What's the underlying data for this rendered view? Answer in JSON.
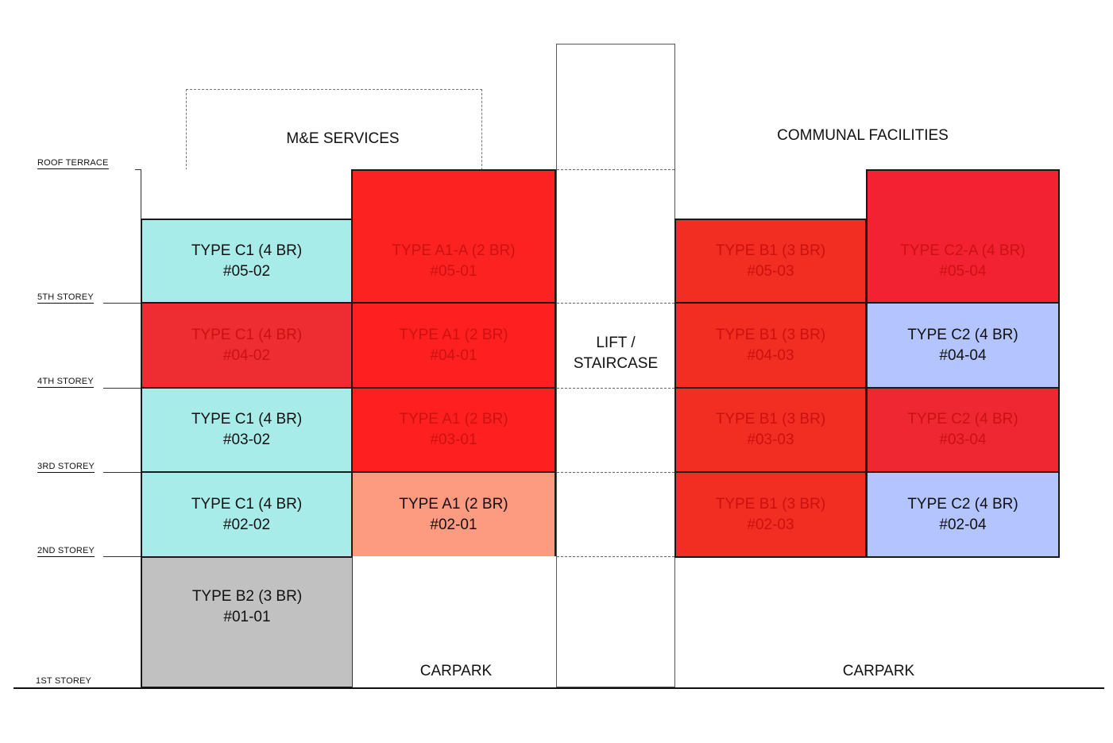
{
  "levels": {
    "roof": "ROOF TERRACE",
    "l5": "5TH STOREY",
    "l4": "4TH STOREY",
    "l3": "3RD STOREY",
    "l2": "2ND STOREY",
    "l1": "1ST STOREY"
  },
  "zones": {
    "me_services": "M&E SERVICES",
    "communal": "COMMUNAL FACILITIES",
    "lift": [
      "LIFT /",
      "STAIRCASE"
    ],
    "carpark_left": "CARPARK",
    "carpark_right": "CARPARK"
  },
  "colors": {
    "sold_red": "#fe2020",
    "available_c1": "#a8ecea",
    "available_c2": "#b3c4fe",
    "available_a1": "#fd9b80",
    "available_b2": "#c1c1c1"
  },
  "units": [
    {
      "id": "u0502",
      "type": "TYPE C1 (4 BR)",
      "no": "#05-02",
      "status": "available",
      "color": "#a8ecea"
    },
    {
      "id": "u0501",
      "type": "TYPE A1-A (2 BR)",
      "no": "#05-01",
      "status": "sold",
      "color": "#fd2222"
    },
    {
      "id": "u0503",
      "type": "TYPE B1 (3 BR)",
      "no": "#05-03",
      "status": "sold",
      "color": "#f22d22"
    },
    {
      "id": "u0504",
      "type": "TYPE C2-A (4 BR)",
      "no": "#05-04",
      "status": "sold",
      "color": "#f22233"
    },
    {
      "id": "u0402",
      "type": "TYPE C1 (4 BR)",
      "no": "#04-02",
      "status": "sold",
      "color": "#ee2d33"
    },
    {
      "id": "u0401",
      "type": "TYPE A1 (2 BR)",
      "no": "#04-01",
      "status": "sold",
      "color": "#fe2020"
    },
    {
      "id": "u0403",
      "type": "TYPE B1 (3 BR)",
      "no": "#04-03",
      "status": "sold",
      "color": "#f22d22"
    },
    {
      "id": "u0404",
      "type": "TYPE C2 (4 BR)",
      "no": "#04-04",
      "status": "available",
      "color": "#b3c4fe"
    },
    {
      "id": "u0302",
      "type": "TYPE C1 (4 BR)",
      "no": "#03-02",
      "status": "available",
      "color": "#a8ecea"
    },
    {
      "id": "u0301",
      "type": "TYPE A1 (2 BR)",
      "no": "#03-01",
      "status": "sold",
      "color": "#fe2020"
    },
    {
      "id": "u0303",
      "type": "TYPE B1 (3 BR)",
      "no": "#03-03",
      "status": "sold",
      "color": "#f22d22"
    },
    {
      "id": "u0304",
      "type": "TYPE C2 (4 BR)",
      "no": "#03-04",
      "status": "sold",
      "color": "#ee2733"
    },
    {
      "id": "u0202",
      "type": "TYPE C1 (4 BR)",
      "no": "#02-02",
      "status": "available",
      "color": "#a8ecea"
    },
    {
      "id": "u0201",
      "type": "TYPE A1 (2 BR)",
      "no": "#02-01",
      "status": "available",
      "color": "#fd9b80"
    },
    {
      "id": "u0203",
      "type": "TYPE B1 (3 BR)",
      "no": "#02-03",
      "status": "sold",
      "color": "#f22d22"
    },
    {
      "id": "u0204",
      "type": "TYPE C2 (4 BR)",
      "no": "#02-04",
      "status": "available",
      "color": "#b3c4fe"
    },
    {
      "id": "u0101",
      "type": "TYPE B2 (3 BR)",
      "no": "#01-01",
      "status": "available",
      "color": "#c1c1c1"
    }
  ]
}
